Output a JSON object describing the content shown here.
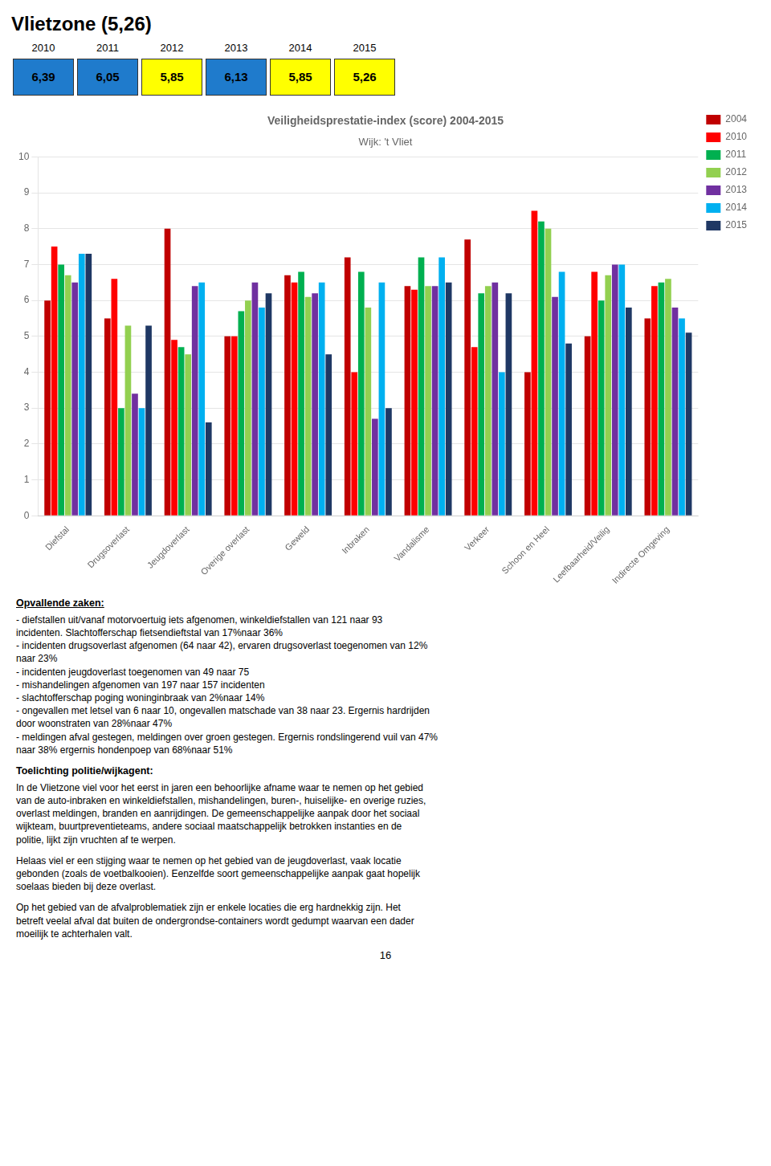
{
  "title": "Vlietzone (5,26)",
  "score_table": {
    "years": [
      "2010",
      "2011",
      "2012",
      "2013",
      "2014",
      "2015"
    ],
    "values": [
      "6,39",
      "6,05",
      "5,85",
      "6,13",
      "5,85",
      "5,26"
    ],
    "colors": [
      "#1F7BCC",
      "#1F7BCC",
      "#FFFF00",
      "#1F7BCC",
      "#FFFF00",
      "#FFFF00"
    ]
  },
  "chart_data": {
    "type": "bar",
    "title": "Veiligheidsprestatie-index (score) 2004-2015",
    "subtitle": "Wijk: 't Vliet",
    "categories": [
      "Diefstal",
      "Drugsoverlast",
      "Jeugdoverlast",
      "Overige overlast",
      "Geweld",
      "Inbraken",
      "Vandalisme",
      "Verkeer",
      "Schoon en Heel",
      "Leefbaarheid/Veilig",
      "Indirecte Omgeving"
    ],
    "series": [
      {
        "name": "2004",
        "color": "#C00000",
        "values": [
          6.0,
          5.5,
          8.0,
          5.0,
          6.7,
          7.2,
          6.4,
          7.7,
          4.0,
          5.0,
          5.5
        ]
      },
      {
        "name": "2010",
        "color": "#FF0000",
        "values": [
          7.5,
          6.6,
          4.9,
          5.0,
          6.5,
          4.0,
          6.3,
          4.7,
          8.5,
          6.8,
          6.4
        ]
      },
      {
        "name": "2011",
        "color": "#00B050",
        "values": [
          7.0,
          3.0,
          4.7,
          5.7,
          6.8,
          6.8,
          7.2,
          6.2,
          8.2,
          6.0,
          6.5
        ]
      },
      {
        "name": "2012",
        "color": "#92D050",
        "values": [
          6.7,
          5.3,
          4.5,
          6.0,
          6.1,
          5.8,
          6.4,
          6.4,
          8.0,
          6.7,
          6.6
        ]
      },
      {
        "name": "2013",
        "color": "#7030A0",
        "values": [
          6.5,
          3.4,
          6.4,
          6.5,
          6.2,
          2.7,
          6.4,
          6.5,
          6.1,
          7.0,
          5.8
        ]
      },
      {
        "name": "2014",
        "color": "#00B0F0",
        "values": [
          7.3,
          3.0,
          6.5,
          5.8,
          6.5,
          6.5,
          7.2,
          4.0,
          6.8,
          7.0,
          5.5
        ]
      },
      {
        "name": "2015",
        "color": "#1F3864",
        "values": [
          7.3,
          5.3,
          2.6,
          6.2,
          4.5,
          3.0,
          6.5,
          6.2,
          4.8,
          5.8,
          5.1
        ]
      }
    ],
    "ylim": [
      0,
      10
    ],
    "yticks": [
      0,
      1,
      2,
      3,
      4,
      5,
      6,
      7,
      8,
      9,
      10
    ],
    "grid": "y",
    "legend": "right"
  },
  "opvallende_header": "Opvallende zaken:",
  "opvallende_bullets": "- diefstallen uit/vanaf motorvoertuig iets afgenomen, winkeldiefstallen van 121 naar 93\nincidenten. Slachtofferschap fietsendieftstal van 17%naar 36%\n- incidenten drugsoverlast afgenomen (64 naar 42), ervaren drugsoverlast toegenomen van 12%\nnaar 23%\n- incidenten jeugdoverlast toegenomen van 49 naar 75\n- mishandelingen afgenomen van 197 naar 157 incidenten\n- slachtofferschap poging woninginbraak van 2%naar 14%\n- ongevallen met letsel van 6 naar 10, ongevallen matschade van 38 naar 23. Ergernis hardrijden\ndoor woonstraten van 28%naar 47%\n- meldingen afval gestegen, meldingen over groen gestegen. Ergernis rondslingerend vuil van 47%\nnaar 38% ergernis hondenpoep van 68%naar 51%",
  "toelichting_header": "Toelichting politie/wijkagent:",
  "toelichting_text": "In de Vlietzone viel voor het eerst in jaren een behoorlijke afname waar te nemen op het gebied\nvan de auto-inbraken en winkeldiefstallen, mishandelingen, buren-, huiselijke- en overige ruzies,\noverlast meldingen, branden en aanrijdingen. De gemeenschappelijke aanpak door het sociaal\nwijkteam, buurtpreventieteams, andere sociaal maatschappelijk betrokken instanties en de\npolitie, lijkt zijn vruchten af te werpen.",
  "helaas_text": "Helaas viel er een stijging waar te nemen op het gebied van de jeugdoverlast, vaak locatie\ngebonden (zoals de voetbalkooien). Eenzelfde soort gemeenschappelijke aanpak gaat hopelijk\nsoelaas bieden bij deze overlast.",
  "op_text": "Op het gebied van de afvalproblematiek zijn er enkele locaties die erg hardnekkig zijn. Het\nbetreft veelal afval dat buiten de ondergrondse-containers wordt gedumpt waarvan een dader\nmoeilijk te achterhalen valt.",
  "page_number": "16"
}
